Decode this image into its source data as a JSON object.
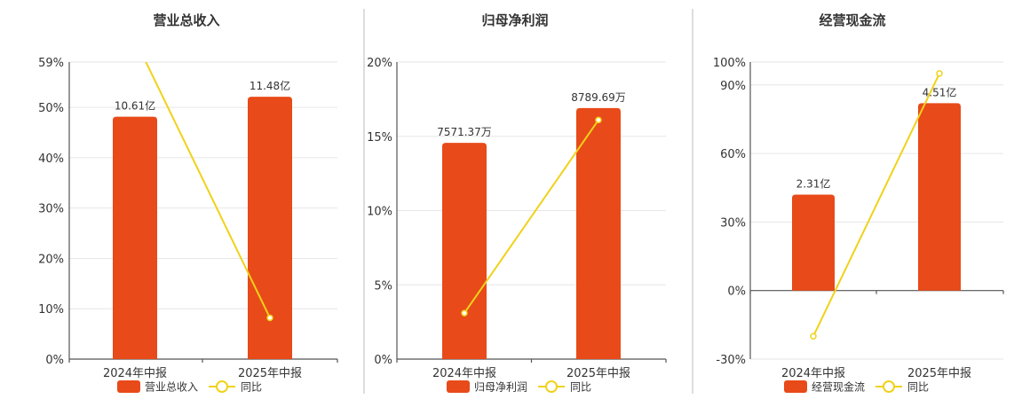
{
  "colors": {
    "bar": "#e84a19",
    "line": "#f0d21a",
    "marker_fill": "#ffffff"
  },
  "legend_line_label": "同比",
  "chart_data": [
    {
      "type": "bar",
      "title": "营业总收入",
      "categories": [
        "2024年中报",
        "2025年中报"
      ],
      "values": [
        10.61,
        11.48
      ],
      "bar_labels": [
        "10.61亿",
        "11.48亿"
      ],
      "bar_max": 13.0,
      "yoy": [
        63.5,
        8.2
      ],
      "y_ticks": [
        "59%",
        "50%",
        "40%",
        "30%",
        "20%",
        "10%",
        "0%"
      ],
      "y_tick_values": [
        59,
        50,
        40,
        30,
        20,
        10,
        0
      ],
      "ylim": [
        0,
        59
      ],
      "legend": [
        "营业总收入",
        "同比"
      ]
    },
    {
      "type": "bar",
      "title": "归母净利润",
      "categories": [
        "2024年中报",
        "2025年中报"
      ],
      "values": [
        7571.37,
        8789.69
      ],
      "bar_labels": [
        "7571.37万",
        "8789.69万"
      ],
      "bar_max": 10400,
      "yoy": [
        3.1,
        16.1
      ],
      "y_ticks": [
        "20%",
        "15%",
        "10%",
        "5%",
        "0%"
      ],
      "y_tick_values": [
        20,
        15,
        10,
        5,
        0
      ],
      "ylim": [
        0,
        20
      ],
      "legend": [
        "归母净利润",
        "同比"
      ]
    },
    {
      "type": "bar",
      "title": "经营现金流",
      "categories": [
        "2024年中报",
        "2025年中报"
      ],
      "values": [
        2.31,
        4.51
      ],
      "bar_labels": [
        "2.31亿",
        "4.51亿"
      ],
      "bar_max": 5.5,
      "yoy": [
        -20,
        95
      ],
      "y_ticks": [
        "100%",
        "90%",
        "60%",
        "30%",
        "0%",
        "-30%"
      ],
      "y_tick_values": [
        100,
        90,
        60,
        30,
        0,
        -30
      ],
      "ylim": [
        -30,
        100
      ],
      "legend": [
        "经营现金流",
        "同比"
      ]
    }
  ]
}
